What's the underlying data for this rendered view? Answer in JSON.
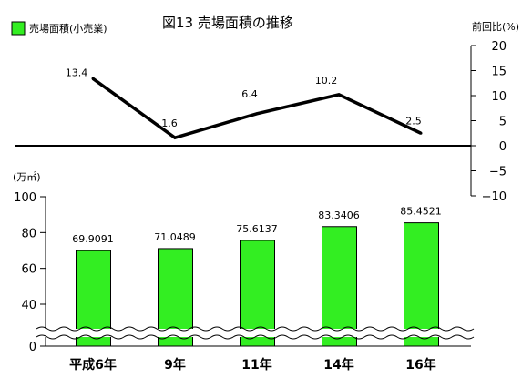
{
  "chart_data": {
    "title": "図13  売場面積の推移",
    "legend": {
      "label": "売場面積(小売業)",
      "color": "#33ee22",
      "placement": "top-left"
    },
    "categories": [
      "平成6年",
      "9年",
      "11年",
      "14年",
      "16年"
    ],
    "line": {
      "type": "line",
      "axis_label": "前回比(%)",
      "values": [
        13.4,
        1.6,
        6.4,
        10.2,
        2.5
      ],
      "value_labels": [
        "13.4",
        "1.6",
        "6.4",
        "10.2",
        "2.5"
      ],
      "ylim": [
        -10,
        20
      ],
      "ticks": [
        20,
        15,
        10,
        5,
        0,
        -5,
        -10
      ],
      "tick_labels": [
        "20",
        "15",
        "10",
        "5",
        "0",
        "−5",
        "−10"
      ]
    },
    "bars": {
      "type": "bar",
      "axis_label": "(万㎡)",
      "series_name": "売場面積(小売業)",
      "values": [
        69.9091,
        71.0489,
        75.6137,
        83.3406,
        85.4521
      ],
      "value_labels": [
        "69.9091",
        "71.0489",
        "75.6137",
        "83.3406",
        "85.4521"
      ],
      "ylim": [
        0,
        100
      ],
      "axis_break": true,
      "ticks": [
        100,
        80,
        60,
        40,
        0
      ],
      "tick_labels": [
        "100",
        "80",
        "60",
        "40",
        "0"
      ]
    }
  }
}
